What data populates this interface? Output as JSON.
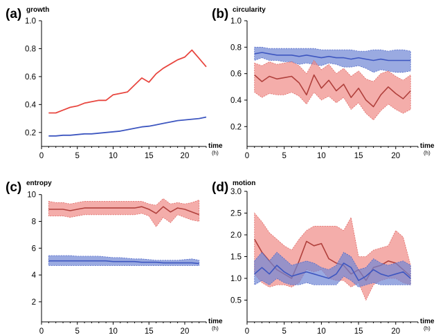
{
  "colors": {
    "red_line": "#e8463f",
    "red_line_dark": "#b0403c",
    "red_band": "#f08a86",
    "red_band_edge": "#e06a66",
    "blue_line": "#3d56c0",
    "blue_band": "#6f86d4",
    "blue_band_edge": "#5068c8"
  },
  "time_label": "time",
  "time_unit": "(h)",
  "chart_data": [
    {
      "type": "line",
      "panel": "(a)",
      "ylabel": "growth",
      "xlim": [
        0,
        23
      ],
      "ylim": [
        0.1,
        1.0
      ],
      "xticks": [
        0,
        5,
        10,
        15,
        20
      ],
      "yticks": [
        0.2,
        0.4,
        0.6,
        0.8,
        1.0
      ],
      "ytick_labels": [
        "0.2",
        "0.4",
        "0.6",
        "0.8",
        "1.0"
      ],
      "series": [
        {
          "color": "red",
          "x": [
            1,
            2,
            3,
            4,
            5,
            6,
            7,
            8,
            9,
            10,
            11,
            12,
            13,
            14,
            15,
            16,
            17,
            18,
            19,
            20,
            21,
            22,
            23
          ],
          "y": [
            0.34,
            0.34,
            0.36,
            0.38,
            0.39,
            0.41,
            0.42,
            0.43,
            0.43,
            0.47,
            0.48,
            0.49,
            0.54,
            0.59,
            0.56,
            0.62,
            0.66,
            0.69,
            0.72,
            0.74,
            0.79,
            0.73,
            0.67
          ]
        },
        {
          "color": "blue",
          "x": [
            1,
            2,
            3,
            4,
            5,
            6,
            7,
            8,
            9,
            10,
            11,
            12,
            13,
            14,
            15,
            16,
            17,
            18,
            19,
            20,
            21,
            22,
            23
          ],
          "y": [
            0.175,
            0.175,
            0.18,
            0.18,
            0.185,
            0.19,
            0.19,
            0.195,
            0.2,
            0.205,
            0.21,
            0.22,
            0.23,
            0.24,
            0.245,
            0.255,
            0.265,
            0.275,
            0.285,
            0.29,
            0.295,
            0.3,
            0.31
          ]
        }
      ]
    },
    {
      "type": "line",
      "panel": "(b)",
      "ylabel": "circularity",
      "xlim": [
        0,
        23
      ],
      "ylim": [
        0.05,
        1.0
      ],
      "xticks": [
        0,
        5,
        10,
        15,
        20
      ],
      "yticks": [
        0.2,
        0.4,
        0.6,
        0.8,
        1.0
      ],
      "ytick_labels": [
        "0.2",
        "0.4",
        "0.6",
        "0.8",
        "1.0"
      ],
      "series": [
        {
          "color": "blue",
          "band": true,
          "x": [
            1,
            2,
            3,
            4,
            5,
            6,
            7,
            8,
            9,
            10,
            11,
            12,
            13,
            14,
            15,
            16,
            17,
            18,
            19,
            20,
            21,
            22
          ],
          "y": [
            0.75,
            0.76,
            0.75,
            0.74,
            0.74,
            0.74,
            0.73,
            0.74,
            0.73,
            0.72,
            0.73,
            0.72,
            0.72,
            0.71,
            0.72,
            0.71,
            0.7,
            0.71,
            0.7,
            0.7,
            0.7,
            0.7
          ],
          "lower": [
            0.7,
            0.72,
            0.7,
            0.7,
            0.69,
            0.69,
            0.67,
            0.68,
            0.67,
            0.66,
            0.68,
            0.67,
            0.65,
            0.65,
            0.66,
            0.64,
            0.61,
            0.63,
            0.62,
            0.61,
            0.61,
            0.62
          ],
          "upper": [
            0.8,
            0.8,
            0.79,
            0.79,
            0.79,
            0.79,
            0.79,
            0.79,
            0.79,
            0.78,
            0.78,
            0.78,
            0.78,
            0.78,
            0.77,
            0.77,
            0.78,
            0.78,
            0.77,
            0.78,
            0.78,
            0.77
          ]
        },
        {
          "color": "red",
          "band": true,
          "x": [
            1,
            2,
            3,
            4,
            5,
            6,
            7,
            8,
            9,
            10,
            11,
            12,
            13,
            14,
            15,
            16,
            17,
            18,
            19,
            20,
            21,
            22
          ],
          "y": [
            0.59,
            0.54,
            0.58,
            0.56,
            0.57,
            0.58,
            0.53,
            0.44,
            0.59,
            0.49,
            0.55,
            0.47,
            0.52,
            0.42,
            0.49,
            0.4,
            0.35,
            0.44,
            0.5,
            0.45,
            0.41,
            0.47
          ],
          "lower": [
            0.46,
            0.42,
            0.45,
            0.44,
            0.44,
            0.46,
            0.43,
            0.37,
            0.46,
            0.4,
            0.43,
            0.38,
            0.42,
            0.33,
            0.38,
            0.3,
            0.25,
            0.32,
            0.37,
            0.33,
            0.3,
            0.33
          ],
          "upper": [
            0.68,
            0.66,
            0.69,
            0.67,
            0.68,
            0.69,
            0.66,
            0.6,
            0.7,
            0.63,
            0.67,
            0.6,
            0.64,
            0.58,
            0.62,
            0.56,
            0.54,
            0.6,
            0.62,
            0.58,
            0.55,
            0.59
          ]
        }
      ]
    },
    {
      "type": "line",
      "panel": "(c)",
      "ylabel": "entropy",
      "xlim": [
        0,
        23
      ],
      "ylim": [
        0.5,
        10.5
      ],
      "xticks": [
        0,
        5,
        10,
        15,
        20
      ],
      "yticks": [
        2,
        4,
        6,
        8,
        10
      ],
      "ytick_labels": [
        "2",
        "4",
        "6",
        "8",
        "10"
      ],
      "series": [
        {
          "color": "red",
          "band": true,
          "x": [
            1,
            2,
            3,
            4,
            5,
            6,
            7,
            8,
            9,
            10,
            11,
            12,
            13,
            14,
            15,
            16,
            17,
            18,
            19,
            20,
            21,
            22
          ],
          "y": [
            8.9,
            8.9,
            8.9,
            8.8,
            8.9,
            9.0,
            9.0,
            9.0,
            9.0,
            9.0,
            9.0,
            9.0,
            9.0,
            9.1,
            8.9,
            8.6,
            9.1,
            8.7,
            9.0,
            8.9,
            8.7,
            8.5
          ],
          "lower": [
            8.4,
            8.4,
            8.4,
            8.3,
            8.4,
            8.5,
            8.5,
            8.5,
            8.5,
            8.5,
            8.5,
            8.5,
            8.5,
            8.6,
            8.4,
            7.6,
            8.3,
            7.9,
            8.5,
            8.3,
            8.1,
            8.0
          ],
          "upper": [
            9.5,
            9.4,
            9.4,
            9.3,
            9.4,
            9.5,
            9.5,
            9.5,
            9.5,
            9.5,
            9.5,
            9.5,
            9.5,
            9.5,
            9.3,
            9.2,
            9.7,
            9.3,
            9.4,
            9.3,
            9.4,
            9.6
          ]
        },
        {
          "color": "blue",
          "band": true,
          "x": [
            1,
            2,
            3,
            4,
            5,
            6,
            7,
            8,
            9,
            10,
            11,
            12,
            13,
            14,
            15,
            16,
            17,
            18,
            19,
            20,
            21,
            22
          ],
          "y": [
            5.05,
            5.05,
            5.05,
            5.05,
            5.05,
            5.05,
            5.05,
            5.05,
            5.05,
            5.0,
            5.0,
            5.0,
            5.0,
            4.95,
            4.95,
            4.95,
            4.9,
            4.9,
            4.9,
            4.9,
            4.9,
            4.85
          ],
          "lower": [
            4.7,
            4.7,
            4.7,
            4.7,
            4.7,
            4.7,
            4.7,
            4.7,
            4.7,
            4.7,
            4.7,
            4.7,
            4.7,
            4.7,
            4.7,
            4.7,
            4.7,
            4.7,
            4.7,
            4.7,
            4.7,
            4.7
          ],
          "upper": [
            5.45,
            5.45,
            5.45,
            5.45,
            5.4,
            5.4,
            5.4,
            5.4,
            5.35,
            5.3,
            5.3,
            5.25,
            5.2,
            5.2,
            5.15,
            5.1,
            5.1,
            5.1,
            5.1,
            5.15,
            5.2,
            5.1
          ]
        }
      ]
    },
    {
      "type": "line",
      "panel": "(d)",
      "ylabel": "motion",
      "xlim": [
        0,
        23
      ],
      "ylim": [
        0.0,
        3.0
      ],
      "xticks": [
        0,
        5,
        10,
        15,
        20
      ],
      "yticks": [
        0.5,
        1.0,
        1.5,
        2.0,
        2.5,
        3.0
      ],
      "ytick_labels": [
        "0.5",
        "1.0",
        "1.5",
        "2.0",
        "2.5",
        "3.0"
      ],
      "series": [
        {
          "color": "red",
          "band": true,
          "x": [
            1,
            2,
            3,
            4,
            5,
            6,
            7,
            8,
            9,
            10,
            11,
            12,
            13,
            14,
            15,
            16,
            17,
            18,
            19,
            20,
            21,
            22
          ],
          "y": [
            1.9,
            1.6,
            1.4,
            1.2,
            1.1,
            1.0,
            1.4,
            1.85,
            1.75,
            1.8,
            1.45,
            1.35,
            1.3,
            1.1,
            1.2,
            0.95,
            1.25,
            1.3,
            1.4,
            1.35,
            1.2,
            1.05
          ],
          "lower": [
            1.1,
            0.9,
            0.8,
            0.85,
            0.85,
            0.8,
            0.9,
            1.2,
            1.15,
            1.2,
            1.0,
            0.95,
            0.95,
            0.8,
            0.9,
            0.5,
            0.85,
            0.95,
            1.0,
            1.0,
            0.9,
            0.85
          ],
          "upper": [
            2.5,
            2.3,
            2.05,
            1.9,
            1.75,
            1.65,
            1.9,
            2.1,
            2.2,
            2.2,
            2.2,
            2.2,
            2.1,
            2.4,
            1.5,
            1.5,
            1.65,
            1.7,
            1.75,
            2.1,
            1.95,
            1.3
          ]
        },
        {
          "color": "blue",
          "band": true,
          "x": [
            1,
            2,
            3,
            4,
            5,
            6,
            7,
            8,
            9,
            10,
            11,
            12,
            13,
            14,
            15,
            16,
            17,
            18,
            19,
            20,
            21,
            22
          ],
          "y": [
            1.1,
            1.25,
            1.1,
            1.3,
            1.15,
            1.05,
            1.1,
            1.15,
            1.1,
            1.05,
            1.0,
            1.1,
            1.35,
            1.25,
            0.95,
            1.05,
            1.2,
            1.1,
            1.05,
            1.1,
            1.15,
            1.0
          ],
          "lower": [
            0.85,
            0.95,
            0.85,
            1.0,
            0.9,
            0.85,
            0.85,
            0.9,
            0.85,
            0.85,
            0.85,
            0.85,
            1.05,
            0.95,
            0.8,
            0.85,
            0.9,
            0.85,
            0.85,
            0.85,
            0.85,
            0.85
          ],
          "upper": [
            1.4,
            1.6,
            1.4,
            1.6,
            1.45,
            1.3,
            1.35,
            1.4,
            1.35,
            1.25,
            1.2,
            1.3,
            1.6,
            1.5,
            1.2,
            1.25,
            1.45,
            1.35,
            1.3,
            1.35,
            1.4,
            1.3
          ]
        }
      ]
    }
  ]
}
